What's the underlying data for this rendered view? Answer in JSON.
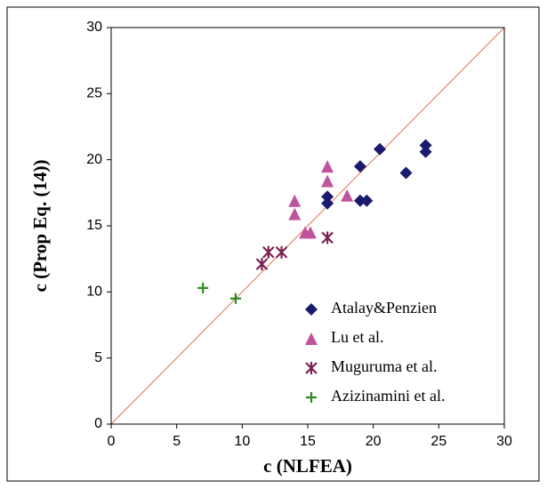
{
  "chart_data": {
    "type": "scatter",
    "x_label": "c (NLFEA)",
    "y_label": "c (Prop Eq. (14))",
    "xlim": [
      0,
      30
    ],
    "ylim": [
      0,
      30
    ],
    "xticks": [
      0,
      5,
      10,
      15,
      20,
      25,
      30
    ],
    "yticks": [
      0,
      5,
      10,
      15,
      20,
      25,
      30
    ],
    "grid": false,
    "legend": "lower right",
    "reference_line_color": "#e0734f",
    "series": [
      {
        "name": "Atalay&Penzien",
        "color": "#1a1a6e",
        "marker": "diamond",
        "x": [
          16.5,
          16.5,
          19,
          19,
          19.5,
          20.5,
          22.5,
          24,
          24
        ],
        "values": [
          17.2,
          16.7,
          19.5,
          16.9,
          16.9,
          20.8,
          19,
          21.1,
          20.6
        ]
      },
      {
        "name": "Lu et al.",
        "color": "#c0549c",
        "marker": "triangle",
        "x": [
          14,
          14,
          14.8,
          15.2,
          16.5,
          16.5,
          18
        ],
        "values": [
          16.9,
          15.9,
          14.5,
          14.5,
          19.5,
          18.4,
          17.3
        ]
      },
      {
        "name": "Muguruma et al.",
        "color": "#7b2050",
        "marker": "asterisk",
        "x": [
          11.5,
          12,
          13,
          16.5
        ],
        "values": [
          12.1,
          13,
          13,
          14.1
        ]
      },
      {
        "name": "Azizinamini et al.",
        "color": "#2e8b22",
        "marker": "plus",
        "x": [
          7,
          9.5
        ],
        "values": [
          10.3,
          9.5
        ]
      }
    ]
  }
}
